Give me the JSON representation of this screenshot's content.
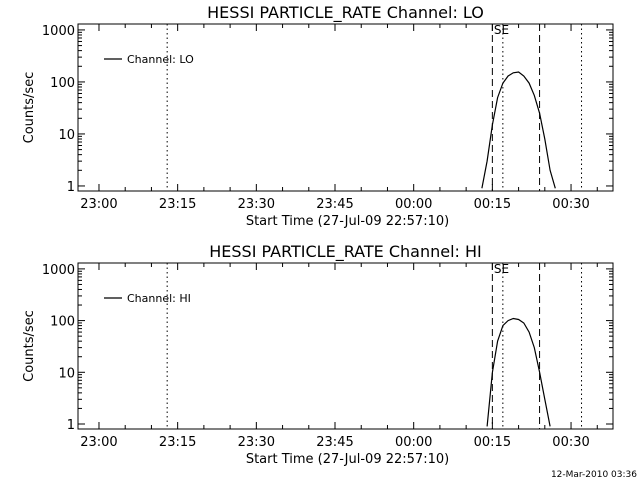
{
  "footer_timestamp": "12-Mar-2010 03:36",
  "colors": {
    "line": "#000000",
    "background": "#ffffff"
  },
  "chart_data": [
    {
      "type": "line",
      "title": "HESSI PARTICLE_RATE Channel: LO",
      "xlabel": "Start Time (27-Jul-09 22:57:10)",
      "ylabel": "Counts/sec",
      "yscale": "log",
      "ylim": [
        0.8,
        1300
      ],
      "xlim": [
        "22:56",
        "00:38"
      ],
      "x_ticks": [
        "23:00",
        "23:15",
        "23:30",
        "23:45",
        "00:00",
        "00:15",
        "00:30"
      ],
      "y_ticks": [
        "1",
        "10",
        "100",
        "1000"
      ],
      "legend": {
        "position": "top-left",
        "entries": [
          "Channel: LO"
        ]
      },
      "markers": [
        {
          "style": "dotted",
          "time": "23:13"
        },
        {
          "style": "dashed",
          "time": "00:15"
        },
        {
          "style": "dotted",
          "time": "00:17",
          "label": "SE"
        },
        {
          "style": "dashed",
          "time": "00:24"
        },
        {
          "style": "dotted",
          "time": "00:32"
        }
      ],
      "series": [
        {
          "name": "Channel: LO",
          "x": [
            "00:13",
            "00:14",
            "00:15",
            "00:16",
            "00:17",
            "00:18",
            "00:19",
            "00:20",
            "00:21",
            "00:22",
            "00:23",
            "00:24",
            "00:25",
            "00:26",
            "00:27"
          ],
          "y": [
            0.9,
            3,
            15,
            50,
            95,
            130,
            150,
            155,
            130,
            95,
            55,
            25,
            8,
            2,
            0.9
          ]
        }
      ]
    },
    {
      "type": "line",
      "title": "HESSI PARTICLE_RATE Channel: HI",
      "xlabel": "Start Time (27-Jul-09 22:57:10)",
      "ylabel": "Counts/sec",
      "yscale": "log",
      "ylim": [
        0.8,
        1300
      ],
      "xlim": [
        "22:56",
        "00:38"
      ],
      "x_ticks": [
        "23:00",
        "23:15",
        "23:30",
        "23:45",
        "00:00",
        "00:15",
        "00:30"
      ],
      "y_ticks": [
        "1",
        "10",
        "100",
        "1000"
      ],
      "legend": {
        "position": "top-left",
        "entries": [
          "Channel: HI"
        ]
      },
      "markers": [
        {
          "style": "dotted",
          "time": "23:13"
        },
        {
          "style": "dashed",
          "time": "00:15"
        },
        {
          "style": "dotted",
          "time": "00:17",
          "label": "SE"
        },
        {
          "style": "dashed",
          "time": "00:24"
        },
        {
          "style": "dotted",
          "time": "00:32"
        }
      ],
      "series": [
        {
          "name": "Channel: HI",
          "x": [
            "00:14",
            "00:15",
            "00:16",
            "00:17",
            "00:18",
            "00:19",
            "00:20",
            "00:21",
            "00:22",
            "00:23",
            "00:24",
            "00:25",
            "00:26"
          ],
          "y": [
            0.9,
            10,
            40,
            80,
            100,
            110,
            105,
            90,
            60,
            30,
            10,
            3,
            0.9
          ]
        }
      ]
    }
  ]
}
